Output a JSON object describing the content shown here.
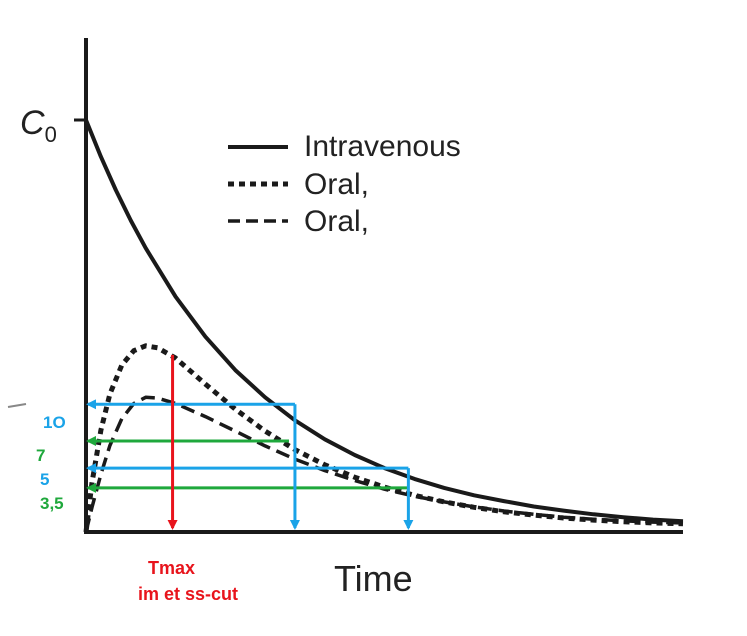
{
  "chart_data": {
    "type": "line",
    "title": "",
    "xlabel": "Time",
    "ylabel": "C0",
    "ylabel_main": "C",
    "ylabel_sub": "0",
    "xlim": [
      0,
      10
    ],
    "ylim": [
      0,
      10
    ],
    "colors": {
      "curve": "#1a1a1a",
      "axis": "#1a1a1a",
      "blue": "#1aa3e8",
      "green": "#1fa83c",
      "red": "#e8141c"
    },
    "series": [
      {
        "name": "Intravenous",
        "style": "solid",
        "x": [
          0,
          0.25,
          0.5,
          0.75,
          1,
          1.5,
          2,
          2.5,
          3,
          3.5,
          4,
          4.5,
          5,
          5.5,
          6,
          6.5,
          7,
          7.5,
          8,
          8.5,
          9,
          9.5,
          10
        ],
        "y": [
          10.0,
          9.11,
          8.3,
          7.56,
          6.89,
          5.71,
          4.74,
          3.93,
          3.27,
          2.71,
          2.25,
          1.87,
          1.55,
          1.29,
          1.07,
          0.89,
          0.75,
          0.62,
          0.52,
          0.43,
          0.36,
          0.3,
          0.26
        ]
      },
      {
        "name": "Oral,",
        "style": "dotted",
        "x": [
          0,
          0.1,
          0.25,
          0.4,
          0.6,
          0.8,
          1.0,
          1.2,
          1.5,
          2,
          2.5,
          3,
          3.5,
          4,
          4.5,
          5,
          5.5,
          6,
          6.5,
          7,
          7.5,
          8,
          8.5,
          9,
          9.5,
          10
        ],
        "y": [
          0,
          1.2,
          2.47,
          3.35,
          4.05,
          4.4,
          4.52,
          4.47,
          4.22,
          3.59,
          2.98,
          2.45,
          2.0,
          1.63,
          1.33,
          1.09,
          0.89,
          0.73,
          0.6,
          0.49,
          0.41,
          0.34,
          0.29,
          0.25,
          0.22,
          0.2
        ]
      },
      {
        "name": "Oral,",
        "style": "dashed",
        "x": [
          0,
          0.1,
          0.25,
          0.4,
          0.6,
          0.8,
          1.0,
          1.2,
          1.5,
          2,
          2.5,
          3,
          3.5,
          4,
          4.5,
          5,
          5.5,
          6,
          6.5,
          7,
          7.5,
          8,
          8.5,
          9,
          9.5,
          10
        ],
        "y": [
          0,
          0.6,
          1.4,
          2.1,
          2.75,
          3.12,
          3.27,
          3.25,
          3.12,
          2.8,
          2.45,
          2.09,
          1.77,
          1.49,
          1.25,
          1.04,
          0.87,
          0.73,
          0.61,
          0.51,
          0.43,
          0.36,
          0.31,
          0.27,
          0.24,
          0.22
        ]
      }
    ],
    "legend": [
      "Intravenous",
      "Oral,",
      "Oral,"
    ],
    "legend_position": "top-right",
    "y_annotations": [
      {
        "label": "1O",
        "value": 3.1,
        "color": "blue"
      },
      {
        "label": "7",
        "value": 2.21,
        "color": "green"
      },
      {
        "label": "5",
        "value": 1.55,
        "color": "blue"
      },
      {
        "label": "3,5",
        "value": 1.07,
        "color": "green"
      }
    ],
    "horizontal_arrows": [
      {
        "y": 3.1,
        "x_from": 3.5,
        "color": "blue"
      },
      {
        "y": 2.21,
        "x_from": 3.4,
        "color": "green"
      },
      {
        "y": 1.55,
        "x_from": 5.4,
        "color": "blue"
      },
      {
        "y": 1.07,
        "x_from": 5.4,
        "color": "green"
      }
    ],
    "vertical_arrows": [
      {
        "x": 1.45,
        "y_from": 4.3,
        "color": "red"
      },
      {
        "x": 3.5,
        "y_from": 3.1,
        "color": "blue"
      },
      {
        "x": 5.4,
        "y_from": 1.55,
        "color": "blue"
      }
    ],
    "x_annotation": {
      "line1": "Tmax",
      "line2": "im et ss-cut",
      "color": "red"
    }
  }
}
